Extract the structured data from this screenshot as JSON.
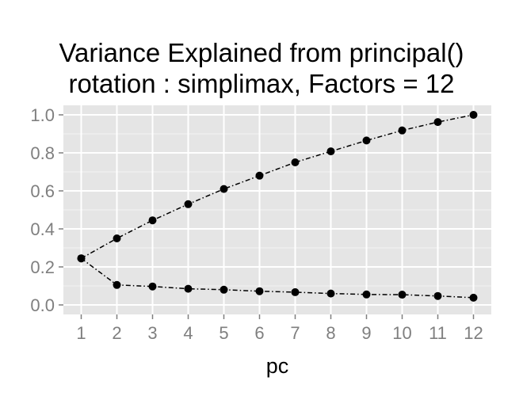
{
  "chart_data": {
    "type": "line",
    "title": "Variance Explained from principal()",
    "subtitle": "rotation : simplimax, Factors = 12",
    "xlabel": "pc",
    "ylabel": "",
    "x": [
      1,
      2,
      3,
      4,
      5,
      6,
      7,
      8,
      9,
      10,
      11,
      12
    ],
    "xlim": [
      0.5,
      12.5
    ],
    "ylim": [
      -0.05,
      1.05
    ],
    "yticks": [
      0.0,
      0.2,
      0.4,
      0.6,
      0.8,
      1.0
    ],
    "ytick_labels": [
      "0.0",
      "0.2",
      "0.4",
      "0.6",
      "0.8",
      "1.0"
    ],
    "xtick_labels": [
      "1",
      "2",
      "3",
      "4",
      "5",
      "6",
      "7",
      "8",
      "9",
      "10",
      "11",
      "12"
    ],
    "grid": true,
    "legend": "none",
    "series": [
      {
        "values": [
          0.245,
          0.35,
          0.445,
          0.53,
          0.61,
          0.68,
          0.75,
          0.808,
          0.865,
          0.918,
          0.962,
          1.0
        ]
      },
      {
        "values": [
          0.245,
          0.105,
          0.097,
          0.085,
          0.08,
          0.072,
          0.067,
          0.06,
          0.055,
          0.054,
          0.047,
          0.038
        ]
      }
    ],
    "colors": {
      "panel": "#e5e5e5",
      "grid": "#ffffff",
      "line": "#000000",
      "point": "#000000",
      "tick_text": "#7f7f7f"
    }
  }
}
